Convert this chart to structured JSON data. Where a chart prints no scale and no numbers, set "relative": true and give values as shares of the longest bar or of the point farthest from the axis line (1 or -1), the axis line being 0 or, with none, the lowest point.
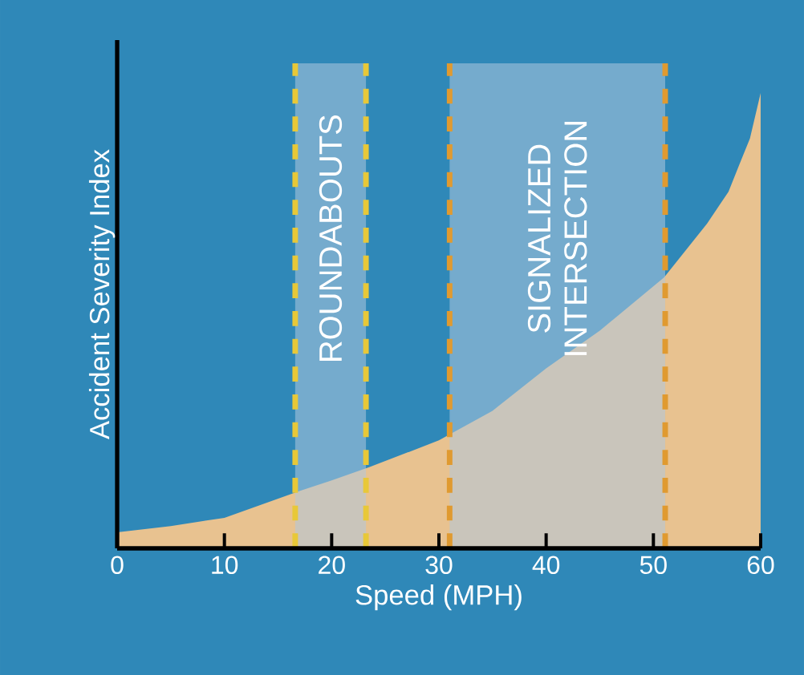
{
  "chart_data": {
    "type": "area",
    "relative": true,
    "xlabel": "Speed (MPH)",
    "ylabel": "Accident Severity Index",
    "x": [
      0,
      5,
      10,
      17,
      20,
      23.5,
      30,
      35,
      40,
      45,
      51,
      55,
      57,
      58,
      59,
      60
    ],
    "values": [
      0.035,
      0.049,
      0.067,
      0.126,
      0.149,
      0.178,
      0.237,
      0.302,
      0.395,
      0.478,
      0.595,
      0.713,
      0.783,
      0.842,
      0.9,
      1.0
    ],
    "color": "#e8c290",
    "xlim": [
      0,
      60
    ],
    "xticks": [
      0,
      10,
      20,
      30,
      40,
      50,
      60
    ],
    "bands": [
      {
        "axis": "x",
        "from": 16.6,
        "to": 23.2,
        "label": "ROUNDABOUTS",
        "color": "#afc8de"
      },
      {
        "axis": "x",
        "from": 31,
        "to": 51.1,
        "label": "SIGNALIZED INTERSECTION",
        "color": "#afc8de"
      }
    ],
    "ref_lines": [
      {
        "axis": "x",
        "value": 16.6,
        "color": "#e8c838",
        "line_style": "dashed"
      },
      {
        "axis": "x",
        "value": 23.2,
        "color": "#e8c838",
        "line_style": "dashed"
      },
      {
        "axis": "x",
        "value": 31,
        "color": "#e09a30",
        "line_style": "dashed"
      },
      {
        "axis": "x",
        "value": 51.1,
        "color": "#e09a30",
        "line_style": "dashed"
      }
    ]
  }
}
